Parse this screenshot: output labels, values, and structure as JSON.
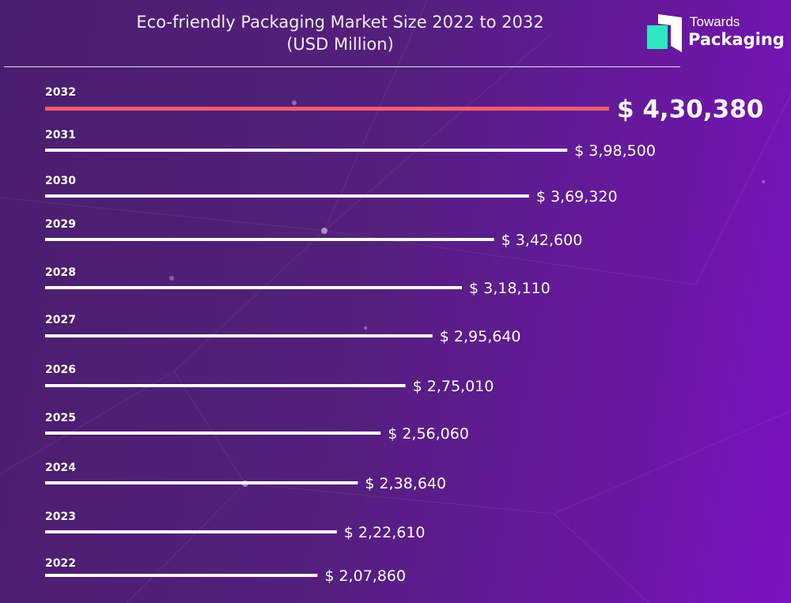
{
  "header": {
    "title_line1": "Eco-friendly Packaging Market Size 2022 to 2032",
    "title_line2": "(USD Million)"
  },
  "logo": {
    "line1": "Towards",
    "line2": "Packaging",
    "colors": {
      "accent": "#2ee8c0",
      "mark": "#ffffff"
    }
  },
  "colors": {
    "bar": "#ffffff",
    "highlight_bar": "#f25a6e",
    "value_text": "#ffffff"
  },
  "chart_data": {
    "type": "bar",
    "orientation": "horizontal",
    "title": "Eco-friendly Packaging Market Size 2022 to 2032 (USD Million)",
    "categories": [
      "2032",
      "2031",
      "2030",
      "2029",
      "2028",
      "2027",
      "2026",
      "2025",
      "2024",
      "2023",
      "2022"
    ],
    "values": [
      430380,
      398500,
      369320,
      342600,
      318110,
      295640,
      275010,
      256060,
      238640,
      222610,
      207860
    ],
    "value_labels": [
      "$ 4,30,380",
      "$ 3,98,500",
      "$ 3,69,320",
      "$ 3,42,600",
      "$ 3,18,110",
      "$ 2,95,640",
      "$ 2,75,010",
      "$ 2,56,060",
      "$ 2,38,640",
      "$ 2,22,610",
      "$ 2,07,860"
    ],
    "highlight_category": "2032",
    "xlim": [
      0,
      430380
    ],
    "grid": false,
    "legend": "none"
  }
}
